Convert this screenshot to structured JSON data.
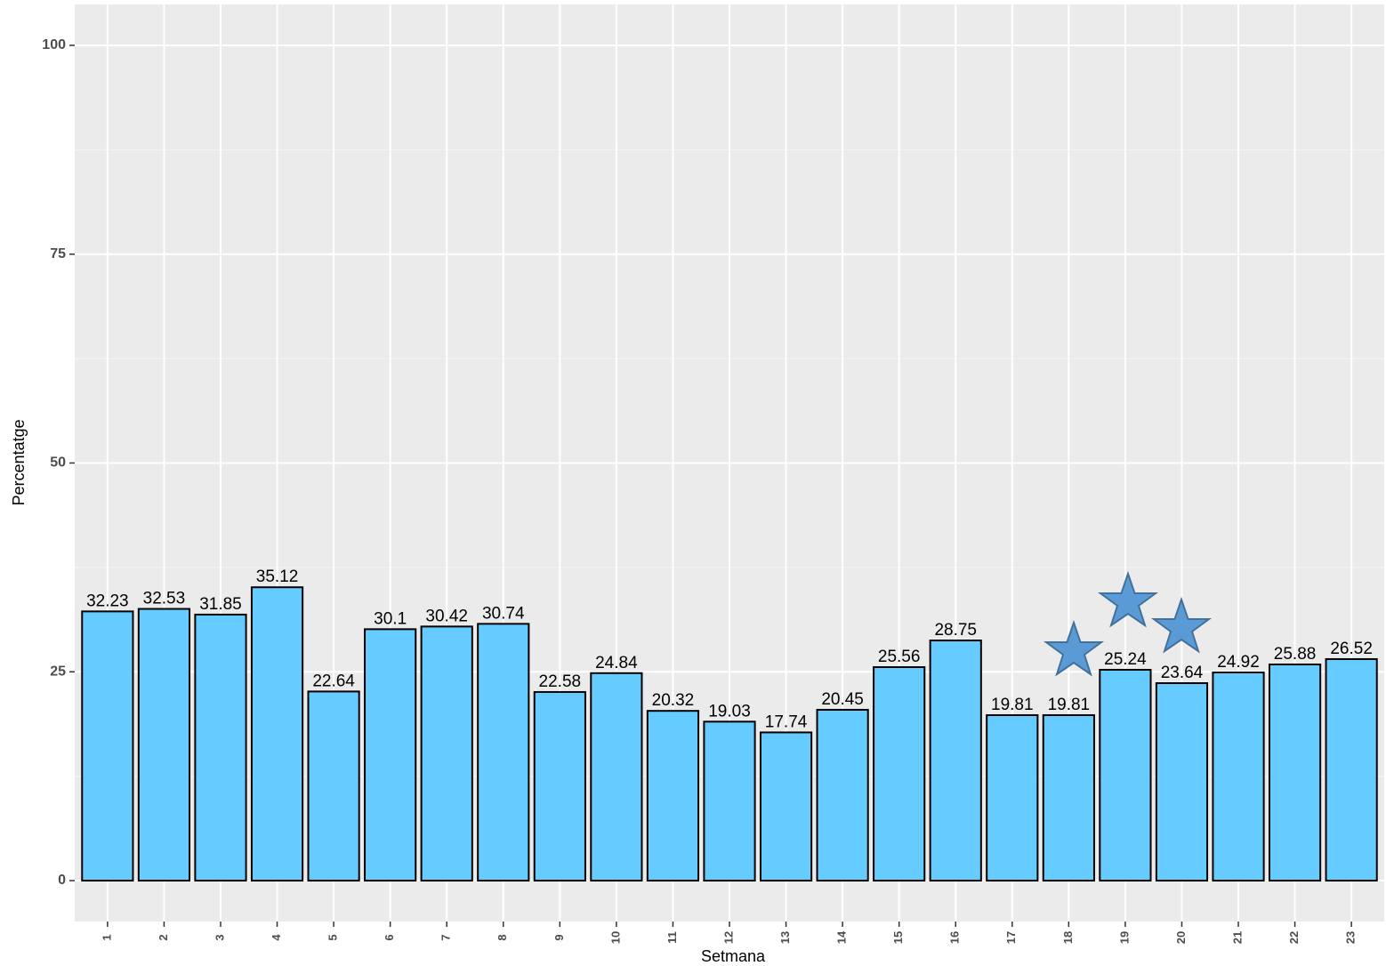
{
  "chart_data": {
    "type": "bar",
    "x_label": "Setmana",
    "y_label": "Percentatge",
    "categories": [
      "1",
      "2",
      "3",
      "4",
      "5",
      "6",
      "7",
      "8",
      "9",
      "10",
      "11",
      "12",
      "13",
      "14",
      "15",
      "16",
      "17",
      "18",
      "19",
      "20",
      "21",
      "22",
      "23"
    ],
    "values": [
      32.23,
      32.53,
      31.85,
      35.12,
      22.64,
      30.1,
      30.42,
      30.74,
      22.58,
      24.84,
      20.32,
      19.03,
      17.74,
      20.45,
      25.56,
      28.75,
      19.81,
      19.81,
      25.24,
      23.64,
      24.92,
      25.88,
      26.52
    ],
    "color": "#66ccff",
    "ylim": [
      -4.9,
      104.9
    ],
    "yticks": [
      0,
      25,
      50,
      75,
      100
    ],
    "grid": true
  }
}
